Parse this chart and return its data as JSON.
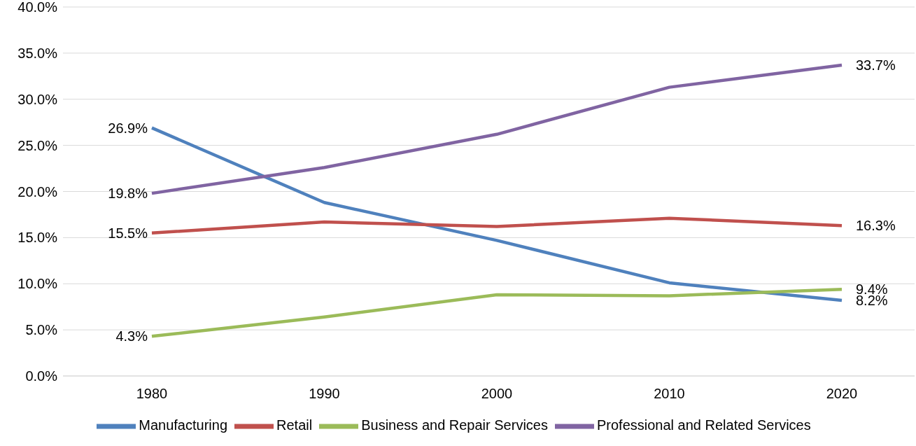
{
  "chart_data": {
    "type": "line",
    "categories": [
      "1980",
      "1990",
      "2000",
      "2010",
      "2020"
    ],
    "series": [
      {
        "name": "Manufacturing",
        "color": "#4f81bd",
        "values": [
          26.9,
          18.8,
          14.7,
          10.1,
          8.2
        ],
        "value_labels": [
          "26.9%",
          null,
          null,
          null,
          "8.2%"
        ]
      },
      {
        "name": "Retail",
        "color": "#c0504d",
        "values": [
          15.5,
          16.7,
          16.2,
          17.1,
          16.3
        ],
        "value_labels": [
          "15.5%",
          null,
          null,
          null,
          "16.3%"
        ]
      },
      {
        "name": "Business and Repair Services",
        "color": "#9bbb59",
        "values": [
          4.3,
          6.4,
          8.8,
          8.7,
          9.4
        ],
        "value_labels": [
          "4.3%",
          null,
          null,
          null,
          "9.4%"
        ]
      },
      {
        "name": "Professional and Related Services",
        "color": "#8064a2",
        "values": [
          19.8,
          22.6,
          26.2,
          31.3,
          33.7
        ],
        "value_labels": [
          "19.8%",
          null,
          null,
          null,
          "33.7%"
        ]
      }
    ],
    "ylim": [
      0,
      40
    ],
    "yticks": [
      {
        "value": 0,
        "label": "0.0%"
      },
      {
        "value": 5,
        "label": "5.0%"
      },
      {
        "value": 10,
        "label": "10.0%"
      },
      {
        "value": 15,
        "label": "15.0%"
      },
      {
        "value": 20,
        "label": "20.0%"
      },
      {
        "value": 25,
        "label": "25.0%"
      },
      {
        "value": 30,
        "label": "30.0%"
      },
      {
        "value": 35,
        "label": "35.0%"
      },
      {
        "value": 40,
        "label": "40.0%"
      }
    ],
    "grid": "y",
    "legend": "bottom",
    "marker": "none",
    "line_style": "solid"
  }
}
